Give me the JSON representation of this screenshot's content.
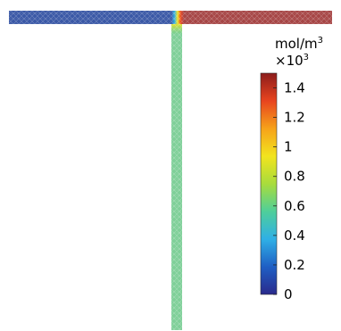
{
  "colorbar": {
    "unit": {
      "line1_base": "mol/m",
      "line1_exponent": "3",
      "line2_base": "×10",
      "line2_exponent": "3"
    },
    "min": 0,
    "max": 1.5,
    "ticks": [
      {
        "value": 0,
        "label": "0"
      },
      {
        "value": 0.2,
        "label": "0.2"
      },
      {
        "value": 0.4,
        "label": "0.4"
      },
      {
        "value": 0.6,
        "label": "0.6"
      },
      {
        "value": 0.8,
        "label": "0.8"
      },
      {
        "value": 1.0,
        "label": "1"
      },
      {
        "value": 1.2,
        "label": "1.2"
      },
      {
        "value": 1.4,
        "label": "1.4"
      }
    ],
    "colormap": [
      "#2a2a8c",
      "#1f5fc4",
      "#2fb0e6",
      "#4fcf9a",
      "#a8dc3c",
      "#f2e41e",
      "#f6a21a",
      "#e8441f",
      "#8c1c1c"
    ]
  },
  "field": {
    "left_channel_value": 0.0,
    "right_channel_value": 1.5,
    "outlet_value": 0.7,
    "colors": {
      "left": "#3a58a6",
      "right": "#a64545",
      "outlet": "#7ecf98",
      "mesh": "#ffffff"
    }
  }
}
